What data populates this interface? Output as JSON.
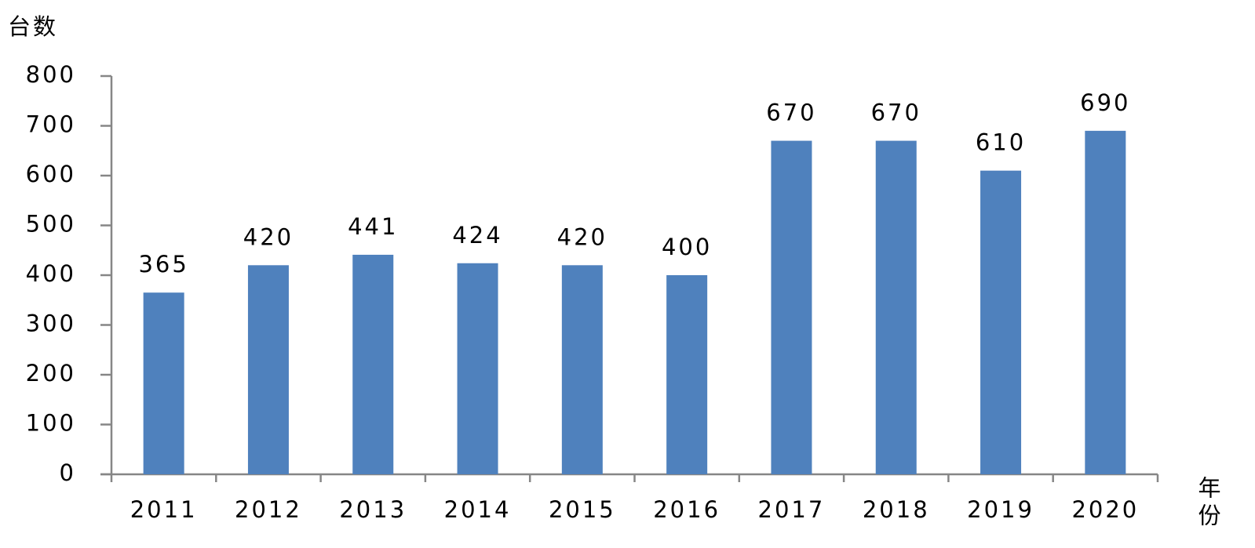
{
  "chart_data": {
    "type": "bar",
    "y_label": "台数",
    "x_label": "年份",
    "categories": [
      "2011",
      "2012",
      "2013",
      "2014",
      "2015",
      "2016",
      "2017",
      "2018",
      "2019",
      "2020"
    ],
    "values": [
      365,
      420,
      441,
      424,
      420,
      400,
      670,
      670,
      610,
      690
    ],
    "color": "#4f81bd",
    "ylim": [
      0,
      800
    ],
    "yticks": [
      0,
      100,
      200,
      300,
      400,
      500,
      600,
      700,
      800
    ],
    "grid": false
  }
}
